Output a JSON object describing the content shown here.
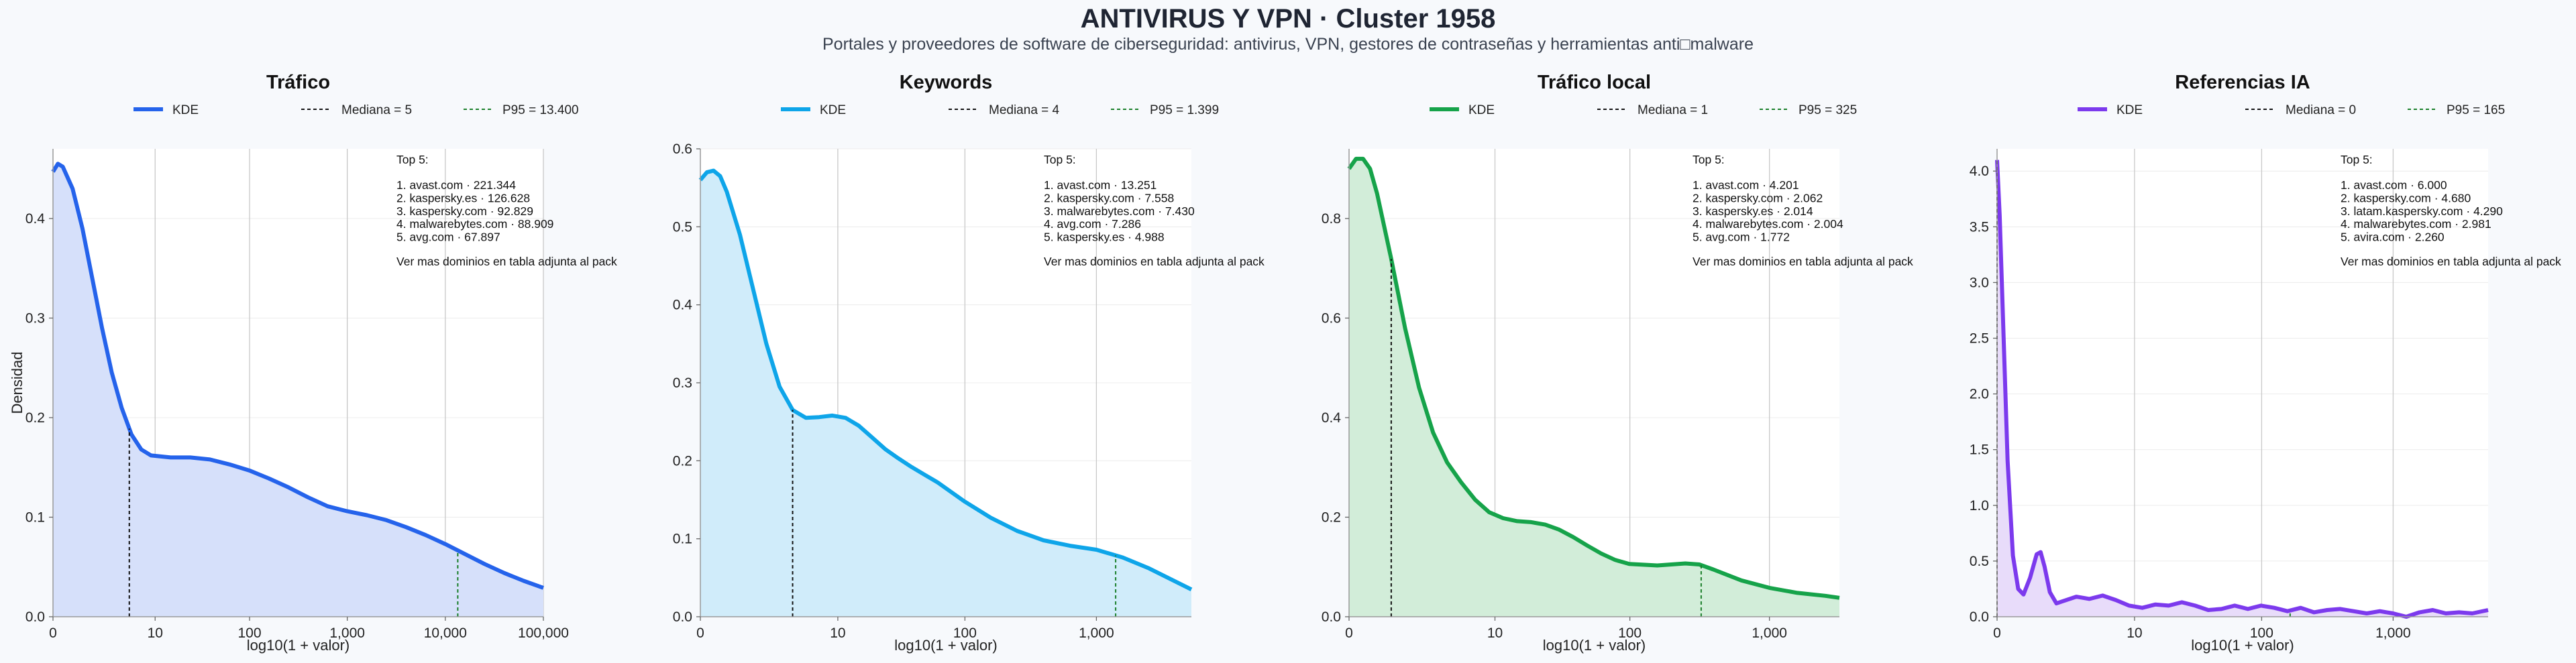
{
  "title": "ANTIVIRUS Y VPN · Cluster 1958",
  "subtitle": "Portales y proveedores de software de ciberseguridad: antivirus, VPN, gestores de contraseñas y herramientas anti□malware",
  "chart_data": [
    {
      "type": "area",
      "title": "Tráfico",
      "color": "#2563eb",
      "fill": "#d6e0fa",
      "xlabel": "log10(1 + valor)",
      "ylabel": "Densidad",
      "xscale": "log10(1+x)",
      "xlim": [
        0,
        5.0
      ],
      "ylim": [
        0,
        0.47
      ],
      "x_ticks": [
        0,
        10,
        100,
        1000,
        10000,
        100000
      ],
      "x_tick_labels": [
        "0",
        "10",
        "100",
        "1,000",
        "10,000",
        "100,000"
      ],
      "y_ticks": [
        0.0,
        0.1,
        0.2,
        0.3,
        0.4
      ],
      "y_tick_labels": [
        "0.0",
        "0.1",
        "0.2",
        "0.3",
        "0.4"
      ],
      "legend": [
        "KDE",
        "Mediana = 5",
        "P95 = 13.400"
      ],
      "median": 5,
      "p95": 13400,
      "kde": [
        [
          0,
          0.447
        ],
        [
          0.05,
          0.455
        ],
        [
          0.1,
          0.452
        ],
        [
          0.2,
          0.43
        ],
        [
          0.3,
          0.39
        ],
        [
          0.4,
          0.34
        ],
        [
          0.5,
          0.29
        ],
        [
          0.6,
          0.245
        ],
        [
          0.7,
          0.21
        ],
        [
          0.8,
          0.183
        ],
        [
          0.9,
          0.168
        ],
        [
          1.0,
          0.162
        ],
        [
          1.2,
          0.16
        ],
        [
          1.4,
          0.16
        ],
        [
          1.6,
          0.158
        ],
        [
          1.8,
          0.153
        ],
        [
          2.0,
          0.147
        ],
        [
          2.2,
          0.139
        ],
        [
          2.4,
          0.13
        ],
        [
          2.6,
          0.12
        ],
        [
          2.8,
          0.111
        ],
        [
          3.0,
          0.106
        ],
        [
          3.2,
          0.102
        ],
        [
          3.4,
          0.097
        ],
        [
          3.6,
          0.09
        ],
        [
          3.8,
          0.082
        ],
        [
          4.0,
          0.073
        ],
        [
          4.2,
          0.063
        ],
        [
          4.4,
          0.053
        ],
        [
          4.6,
          0.044
        ],
        [
          4.8,
          0.036
        ],
        [
          5.0,
          0.029
        ]
      ],
      "top5_header": "Top 5:",
      "top5": [
        "1. avast.com · 221.344",
        "2. kaspersky.es · 126.628",
        "3. kaspersky.com · 92.829",
        "4. malwarebytes.com · 88.909",
        "5. avg.com · 67.897"
      ],
      "note": "Ver mas dominios en tabla adjunta al pack"
    },
    {
      "type": "area",
      "title": "Keywords",
      "color": "#0ea5e9",
      "fill": "#d0ecfa",
      "xlabel": "log10(1 + valor)",
      "ylabel": "",
      "xscale": "log10(1+x)",
      "xlim": [
        0,
        3.72
      ],
      "ylim": [
        0,
        0.6
      ],
      "x_ticks": [
        0,
        10,
        100,
        1000
      ],
      "x_tick_labels": [
        "0",
        "10",
        "100",
        "1,000"
      ],
      "y_ticks": [
        0.0,
        0.1,
        0.2,
        0.3,
        0.4,
        0.5,
        0.6
      ],
      "y_tick_labels": [
        "0.0",
        "0.1",
        "0.2",
        "0.3",
        "0.4",
        "0.5",
        "0.6"
      ],
      "legend": [
        "KDE",
        "Mediana = 4",
        "P95 = 1.399"
      ],
      "median": 4,
      "p95": 1399,
      "kde": [
        [
          0,
          0.56
        ],
        [
          0.05,
          0.57
        ],
        [
          0.1,
          0.572
        ],
        [
          0.15,
          0.565
        ],
        [
          0.2,
          0.545
        ],
        [
          0.3,
          0.49
        ],
        [
          0.4,
          0.42
        ],
        [
          0.5,
          0.35
        ],
        [
          0.6,
          0.295
        ],
        [
          0.7,
          0.265
        ],
        [
          0.8,
          0.255
        ],
        [
          0.9,
          0.256
        ],
        [
          1.0,
          0.258
        ],
        [
          1.1,
          0.255
        ],
        [
          1.2,
          0.245
        ],
        [
          1.3,
          0.23
        ],
        [
          1.4,
          0.215
        ],
        [
          1.5,
          0.203
        ],
        [
          1.6,
          0.192
        ],
        [
          1.7,
          0.182
        ],
        [
          1.8,
          0.172
        ],
        [
          1.9,
          0.16
        ],
        [
          2.0,
          0.148
        ],
        [
          2.2,
          0.127
        ],
        [
          2.4,
          0.11
        ],
        [
          2.6,
          0.098
        ],
        [
          2.8,
          0.091
        ],
        [
          3.0,
          0.086
        ],
        [
          3.2,
          0.076
        ],
        [
          3.4,
          0.062
        ],
        [
          3.6,
          0.045
        ],
        [
          3.72,
          0.035
        ]
      ],
      "top5_header": "Top 5:",
      "top5": [
        "1. avast.com · 13.251",
        "2. kaspersky.com · 7.558",
        "3. malwarebytes.com · 7.430",
        "4. avg.com · 7.286",
        "5. kaspersky.es · 4.988"
      ],
      "note": "Ver mas dominios en tabla adjunta al pack"
    },
    {
      "type": "area",
      "title": "Tráfico local",
      "color": "#16a34a",
      "fill": "#d2edd9",
      "xlabel": "log10(1 + valor)",
      "ylabel": "",
      "xscale": "log10(1+x)",
      "xlim": [
        0,
        3.5
      ],
      "ylim": [
        0,
        0.94
      ],
      "x_ticks": [
        0,
        10,
        100,
        1000
      ],
      "x_tick_labels": [
        "0",
        "10",
        "100",
        "1,000"
      ],
      "y_ticks": [
        0.0,
        0.2,
        0.4,
        0.6,
        0.8
      ],
      "y_tick_labels": [
        "0.0",
        "0.2",
        "0.4",
        "0.6",
        "0.8"
      ],
      "legend": [
        "KDE",
        "Mediana = 1",
        "P95 = 325"
      ],
      "median": 1,
      "p95": 325,
      "kde": [
        [
          0,
          0.9
        ],
        [
          0.05,
          0.92
        ],
        [
          0.1,
          0.92
        ],
        [
          0.15,
          0.9
        ],
        [
          0.2,
          0.85
        ],
        [
          0.3,
          0.72
        ],
        [
          0.4,
          0.58
        ],
        [
          0.5,
          0.46
        ],
        [
          0.6,
          0.37
        ],
        [
          0.7,
          0.31
        ],
        [
          0.8,
          0.27
        ],
        [
          0.9,
          0.235
        ],
        [
          1.0,
          0.21
        ],
        [
          1.1,
          0.198
        ],
        [
          1.2,
          0.192
        ],
        [
          1.3,
          0.19
        ],
        [
          1.4,
          0.185
        ],
        [
          1.5,
          0.175
        ],
        [
          1.6,
          0.16
        ],
        [
          1.7,
          0.143
        ],
        [
          1.8,
          0.127
        ],
        [
          1.9,
          0.114
        ],
        [
          2.0,
          0.106
        ],
        [
          2.2,
          0.103
        ],
        [
          2.4,
          0.107
        ],
        [
          2.5,
          0.105
        ],
        [
          2.6,
          0.095
        ],
        [
          2.8,
          0.073
        ],
        [
          3.0,
          0.058
        ],
        [
          3.2,
          0.048
        ],
        [
          3.4,
          0.042
        ],
        [
          3.5,
          0.038
        ]
      ],
      "top5_header": "Top 5:",
      "top5": [
        "1. avast.com · 4.201",
        "2. kaspersky.com · 2.062",
        "3. kaspersky.es · 2.014",
        "4. malwarebytes.com · 2.004",
        "5. avg.com · 1.772"
      ],
      "note": "Ver mas dominios en tabla adjunta al pack"
    },
    {
      "type": "area",
      "title": "Referencias IA",
      "color": "#7c3aed",
      "fill": "#e8dcfa",
      "xlabel": "log10(1 + valor)",
      "ylabel": "",
      "xscale": "log10(1+x)",
      "xlim": [
        0,
        3.72
      ],
      "ylim": [
        0,
        4.2
      ],
      "x_ticks": [
        0,
        10,
        100,
        1000
      ],
      "x_tick_labels": [
        "0",
        "10",
        "100",
        "1,000"
      ],
      "y_ticks": [
        0.0,
        0.5,
        1.0,
        1.5,
        2.0,
        2.5,
        3.0,
        3.5,
        4.0
      ],
      "y_tick_labels": [
        "0.0",
        "0.5",
        "1.0",
        "1.5",
        "2.0",
        "2.5",
        "3.0",
        "3.5",
        "4.0"
      ],
      "legend": [
        "KDE",
        "Mediana = 0",
        "P95 = 165"
      ],
      "median": 0,
      "p95": 165,
      "kde": [
        [
          0,
          4.1
        ],
        [
          0.02,
          3.6
        ],
        [
          0.05,
          2.5
        ],
        [
          0.08,
          1.4
        ],
        [
          0.12,
          0.55
        ],
        [
          0.16,
          0.25
        ],
        [
          0.2,
          0.2
        ],
        [
          0.25,
          0.35
        ],
        [
          0.3,
          0.56
        ],
        [
          0.33,
          0.58
        ],
        [
          0.36,
          0.45
        ],
        [
          0.4,
          0.22
        ],
        [
          0.45,
          0.12
        ],
        [
          0.5,
          0.14
        ],
        [
          0.6,
          0.18
        ],
        [
          0.7,
          0.16
        ],
        [
          0.8,
          0.19
        ],
        [
          0.9,
          0.15
        ],
        [
          1.0,
          0.1
        ],
        [
          1.1,
          0.08
        ],
        [
          1.2,
          0.11
        ],
        [
          1.3,
          0.1
        ],
        [
          1.4,
          0.13
        ],
        [
          1.5,
          0.1
        ],
        [
          1.6,
          0.06
        ],
        [
          1.7,
          0.07
        ],
        [
          1.8,
          0.1
        ],
        [
          1.9,
          0.07
        ],
        [
          2.0,
          0.1
        ],
        [
          2.1,
          0.08
        ],
        [
          2.2,
          0.05
        ],
        [
          2.3,
          0.08
        ],
        [
          2.4,
          0.04
        ],
        [
          2.5,
          0.06
        ],
        [
          2.6,
          0.07
        ],
        [
          2.7,
          0.05
        ],
        [
          2.8,
          0.03
        ],
        [
          2.9,
          0.05
        ],
        [
          3.0,
          0.03
        ],
        [
          3.1,
          0.0
        ],
        [
          3.2,
          0.04
        ],
        [
          3.3,
          0.06
        ],
        [
          3.4,
          0.03
        ],
        [
          3.5,
          0.04
        ],
        [
          3.6,
          0.03
        ],
        [
          3.72,
          0.06
        ]
      ],
      "top5_header": "Top 5:",
      "top5": [
        "1. avast.com · 6.000",
        "2. kaspersky.com · 4.680",
        "3. latam.kaspersky.com · 4.290",
        "4. malwarebytes.com · 2.981",
        "5. avira.com · 2.260"
      ],
      "note": "Ver mas dominios en tabla adjunta al pack"
    }
  ]
}
